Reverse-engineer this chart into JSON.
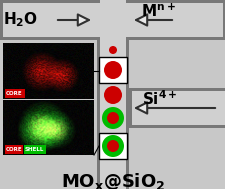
{
  "bg_color": "#c8c8c8",
  "reactor_dark": "#787878",
  "reactor_mid": "#b0b0b0",
  "reactor_light": "#d0d0d0",
  "arrow_face": "#e8e8e8",
  "arrow_edge": "#303030",
  "dot_red": "#cc0000",
  "dot_green": "#00aa00",
  "core_color": "#cc0000",
  "shell_color": "#00bb00",
  "black": "#000000",
  "white": "#ffffff",
  "label_core": "CORE",
  "label_shell": "SHELL",
  "h2o": "H$_2$O",
  "mn": "M$^{n+}$",
  "si": "Si$^{4+}$",
  "title": "MO$_x$@SiO$_2$",
  "figw": 2.26,
  "figh": 1.89,
  "dpi": 100
}
